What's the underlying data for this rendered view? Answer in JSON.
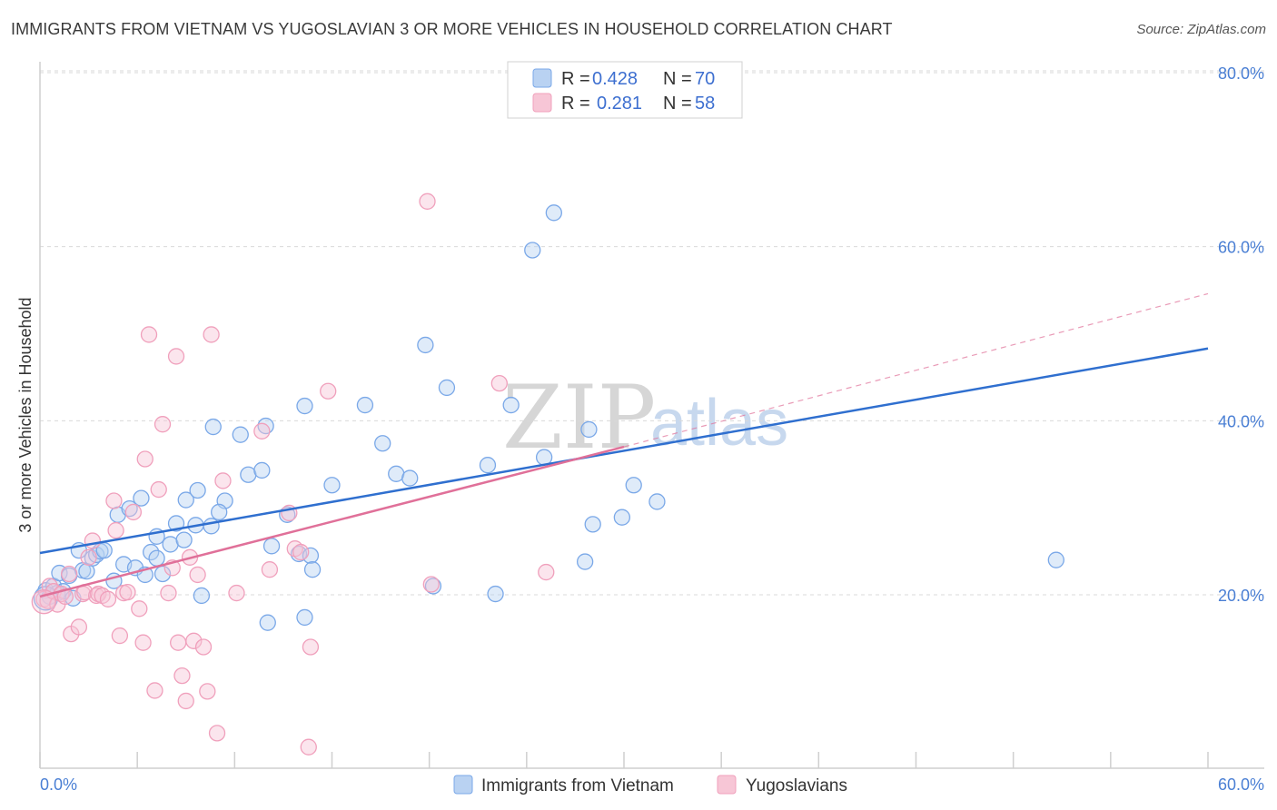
{
  "title": "IMMIGRANTS FROM VIETNAM VS YUGOSLAVIAN 3 OR MORE VEHICLES IN HOUSEHOLD CORRELATION CHART",
  "source": "Source: ZipAtlas.com",
  "watermark": {
    "zip": "ZIP",
    "atlas": "atlas"
  },
  "colors": {
    "blue": "#7aa8e8",
    "blue_fill": "#b9d2f2",
    "blue_line": "#2f6fcf",
    "pink": "#f0a0bc",
    "pink_fill": "#f7c6d6",
    "pink_line": "#e07099",
    "tick": "#4a7fd4",
    "grid": "#d9d9d9"
  },
  "legend": {
    "rows": [
      {
        "r_label": "R =",
        "r_value": "0.428",
        "n_label": "N =",
        "n_value": "70"
      },
      {
        "r_label": "R =",
        "r_value": "0.281",
        "n_label": "N =",
        "n_value": "58"
      }
    ]
  },
  "chart_data": {
    "type": "scatter",
    "title": "IMMIGRANTS FROM VIETNAM VS YUGOSLAVIAN 3 OR MORE VEHICLES IN HOUSEHOLD CORRELATION CHART",
    "xlabel": "",
    "ylabel": "3 or more Vehicles in Household",
    "xlim": [
      0,
      60
    ],
    "ylim": [
      0,
      85
    ],
    "x_tick_labels": [
      "0.0%",
      "60.0%"
    ],
    "y_ticks": [
      20,
      40,
      60,
      80
    ],
    "y_tick_labels": [
      "20.0%",
      "40.0%",
      "60.0%",
      "80.0%"
    ],
    "legend_position": "top-center",
    "series": [
      {
        "name": "Immigrants from Vietnam",
        "R": 0.428,
        "N": 70,
        "trend": {
          "x0": 0,
          "y0": 24.8,
          "x1": 60,
          "y1": 48.3
        },
        "points": [
          [
            0.3,
            20.5
          ],
          [
            0.5,
            19.8
          ],
          [
            0.7,
            21
          ],
          [
            0.9,
            20.2
          ],
          [
            1.0,
            22.5
          ],
          [
            1.2,
            20.4
          ],
          [
            1.5,
            22.2
          ],
          [
            1.7,
            19.6
          ],
          [
            2.0,
            25.1
          ],
          [
            2.2,
            22.8
          ],
          [
            2.4,
            22.7
          ],
          [
            2.7,
            24.2
          ],
          [
            2.9,
            24.6
          ],
          [
            3.1,
            25.0
          ],
          [
            3.3,
            25.1
          ],
          [
            3.8,
            21.6
          ],
          [
            4.0,
            29.2
          ],
          [
            4.3,
            23.5
          ],
          [
            4.6,
            29.9
          ],
          [
            4.9,
            23.1
          ],
          [
            5.2,
            31.1
          ],
          [
            5.4,
            22.3
          ],
          [
            5.7,
            24.9
          ],
          [
            6.0,
            24.2
          ],
          [
            6.3,
            22.4
          ],
          [
            6.0,
            26.7
          ],
          [
            6.7,
            25.8
          ],
          [
            7.0,
            28.2
          ],
          [
            7.4,
            26.3
          ],
          [
            7.5,
            30.9
          ],
          [
            8.0,
            28.0
          ],
          [
            8.3,
            19.9
          ],
          [
            8.1,
            32.0
          ],
          [
            8.8,
            27.9
          ],
          [
            8.9,
            39.3
          ],
          [
            9.5,
            30.8
          ],
          [
            9.2,
            29.5
          ],
          [
            10.3,
            38.4
          ],
          [
            10.7,
            33.8
          ],
          [
            11.4,
            34.3
          ],
          [
            11.6,
            39.4
          ],
          [
            11.7,
            16.8
          ],
          [
            11.9,
            25.6
          ],
          [
            12.7,
            29.2
          ],
          [
            13.3,
            24.7
          ],
          [
            13.6,
            17.4
          ],
          [
            13.9,
            24.5
          ],
          [
            14.0,
            22.9
          ],
          [
            13.6,
            41.7
          ],
          [
            15.0,
            32.6
          ],
          [
            16.7,
            41.8
          ],
          [
            17.6,
            37.4
          ],
          [
            18.3,
            33.9
          ],
          [
            19.0,
            33.4
          ],
          [
            19.8,
            48.7
          ],
          [
            20.2,
            21.0
          ],
          [
            20.9,
            43.8
          ],
          [
            23.0,
            34.9
          ],
          [
            23.4,
            20.1
          ],
          [
            24.2,
            41.8
          ],
          [
            25.3,
            59.6
          ],
          [
            25.9,
            35.8
          ],
          [
            26.4,
            63.9
          ],
          [
            28.0,
            23.8
          ],
          [
            28.4,
            28.1
          ],
          [
            28.2,
            39.0
          ],
          [
            30.5,
            32.6
          ],
          [
            31.7,
            30.7
          ],
          [
            29.9,
            28.9
          ],
          [
            52.2,
            24.0
          ]
        ]
      },
      {
        "name": "Yugoslavians",
        "R": 0.281,
        "N": 58,
        "trend": {
          "x0": 0,
          "y0": 19.8,
          "x1": 30,
          "y1": 37.0,
          "dash_x1": 60,
          "dash_y1": 54.6
        },
        "points": [
          [
            0.2,
            19.5
          ],
          [
            0.4,
            19.3
          ],
          [
            0.5,
            21.0
          ],
          [
            0.7,
            20.4
          ],
          [
            0.9,
            18.9
          ],
          [
            1.1,
            20.1
          ],
          [
            1.3,
            19.8
          ],
          [
            1.5,
            22.4
          ],
          [
            1.6,
            15.5
          ],
          [
            2.0,
            16.3
          ],
          [
            2.2,
            20.1
          ],
          [
            2.3,
            20.3
          ],
          [
            2.5,
            24.3
          ],
          [
            2.7,
            26.2
          ],
          [
            2.9,
            19.9
          ],
          [
            3.0,
            20.1
          ],
          [
            3.2,
            19.9
          ],
          [
            3.5,
            19.5
          ],
          [
            3.8,
            30.8
          ],
          [
            3.9,
            27.4
          ],
          [
            4.1,
            15.3
          ],
          [
            4.3,
            20.2
          ],
          [
            4.5,
            20.3
          ],
          [
            4.8,
            29.5
          ],
          [
            5.1,
            18.4
          ],
          [
            5.3,
            14.5
          ],
          [
            5.4,
            35.6
          ],
          [
            5.6,
            49.9
          ],
          [
            5.9,
            9.0
          ],
          [
            6.1,
            32.1
          ],
          [
            6.3,
            39.6
          ],
          [
            6.6,
            20.2
          ],
          [
            6.8,
            23.1
          ],
          [
            7.0,
            47.4
          ],
          [
            7.1,
            14.5
          ],
          [
            7.3,
            10.7
          ],
          [
            7.5,
            7.8
          ],
          [
            7.7,
            24.3
          ],
          [
            7.9,
            14.7
          ],
          [
            8.1,
            22.3
          ],
          [
            8.4,
            14.0
          ],
          [
            8.6,
            8.9
          ],
          [
            8.8,
            49.9
          ],
          [
            9.1,
            4.1
          ],
          [
            9.4,
            33.1
          ],
          [
            10.1,
            20.2
          ],
          [
            11.4,
            38.8
          ],
          [
            11.8,
            22.9
          ],
          [
            12.8,
            29.4
          ],
          [
            13.1,
            25.3
          ],
          [
            13.4,
            24.9
          ],
          [
            13.9,
            14.0
          ],
          [
            13.8,
            2.5
          ],
          [
            14.8,
            43.4
          ],
          [
            19.9,
            65.2
          ],
          [
            20.1,
            21.2
          ],
          [
            23.6,
            44.3
          ],
          [
            26.0,
            22.6
          ]
        ]
      }
    ]
  },
  "bottom_legend": {
    "items": [
      {
        "label": "Immigrants from Vietnam"
      },
      {
        "label": "Yugoslavians"
      }
    ]
  }
}
